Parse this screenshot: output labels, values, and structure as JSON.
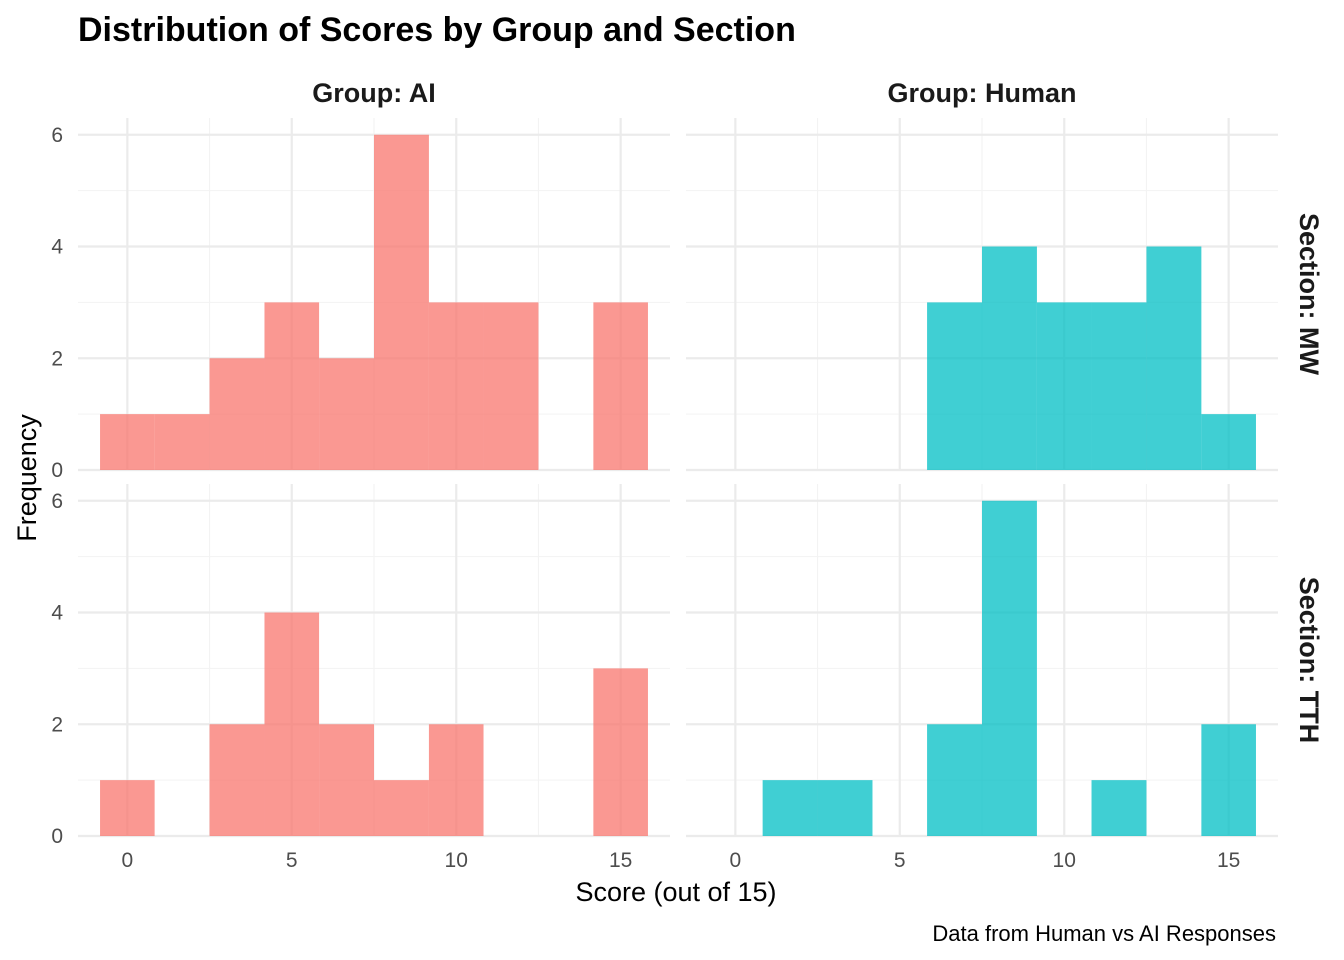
{
  "chart_data": {
    "type": "bar",
    "title": "Distribution of Scores by Group and Section",
    "xlabel": "Score (out of 15)",
    "ylabel": "Frequency",
    "caption": "Data from Human vs AI Responses",
    "xlim": [
      -1.5,
      16.5
    ],
    "ylim": [
      0,
      6.3
    ],
    "x_ticks": [
      0,
      5,
      10,
      15
    ],
    "y_ticks": [
      0,
      2,
      4,
      6
    ],
    "bin_width": 1.667,
    "grid": true,
    "facet_columns": [
      {
        "strip": "Group: AI",
        "color": "#F8766D"
      },
      {
        "strip": "Group: Human",
        "color": "#00BFC4"
      }
    ],
    "facet_rows": [
      {
        "strip": "Section: MW"
      },
      {
        "strip": "Section: TTH"
      }
    ],
    "panels": [
      {
        "column": 0,
        "row": 0,
        "bins": [
          {
            "x0": -0.83,
            "x1": 0.83,
            "count": 1
          },
          {
            "x0": 0.83,
            "x1": 2.5,
            "count": 1
          },
          {
            "x0": 2.5,
            "x1": 4.17,
            "count": 2
          },
          {
            "x0": 4.17,
            "x1": 5.83,
            "count": 3
          },
          {
            "x0": 5.83,
            "x1": 7.5,
            "count": 2
          },
          {
            "x0": 7.5,
            "x1": 9.17,
            "count": 6
          },
          {
            "x0": 9.17,
            "x1": 10.83,
            "count": 3
          },
          {
            "x0": 10.83,
            "x1": 12.5,
            "count": 3
          },
          {
            "x0": 14.17,
            "x1": 15.83,
            "count": 3
          }
        ]
      },
      {
        "column": 1,
        "row": 0,
        "bins": [
          {
            "x0": 5.83,
            "x1": 7.5,
            "count": 3
          },
          {
            "x0": 7.5,
            "x1": 9.17,
            "count": 4
          },
          {
            "x0": 9.17,
            "x1": 10.83,
            "count": 3
          },
          {
            "x0": 10.83,
            "x1": 12.5,
            "count": 3
          },
          {
            "x0": 12.5,
            "x1": 14.17,
            "count": 4
          },
          {
            "x0": 14.17,
            "x1": 15.83,
            "count": 1
          }
        ]
      },
      {
        "column": 0,
        "row": 1,
        "bins": [
          {
            "x0": -0.83,
            "x1": 0.83,
            "count": 1
          },
          {
            "x0": 2.5,
            "x1": 4.17,
            "count": 2
          },
          {
            "x0": 4.17,
            "x1": 5.83,
            "count": 4
          },
          {
            "x0": 5.83,
            "x1": 7.5,
            "count": 2
          },
          {
            "x0": 7.5,
            "x1": 9.17,
            "count": 1
          },
          {
            "x0": 9.17,
            "x1": 10.83,
            "count": 2
          },
          {
            "x0": 14.17,
            "x1": 15.83,
            "count": 3
          }
        ]
      },
      {
        "column": 1,
        "row": 1,
        "bins": [
          {
            "x0": 0.83,
            "x1": 2.5,
            "count": 1
          },
          {
            "x0": 2.5,
            "x1": 4.17,
            "count": 1
          },
          {
            "x0": 5.83,
            "x1": 7.5,
            "count": 2
          },
          {
            "x0": 7.5,
            "x1": 9.17,
            "count": 6
          },
          {
            "x0": 10.83,
            "x1": 12.5,
            "count": 1
          },
          {
            "x0": 14.17,
            "x1": 15.83,
            "count": 2
          }
        ]
      }
    ]
  }
}
